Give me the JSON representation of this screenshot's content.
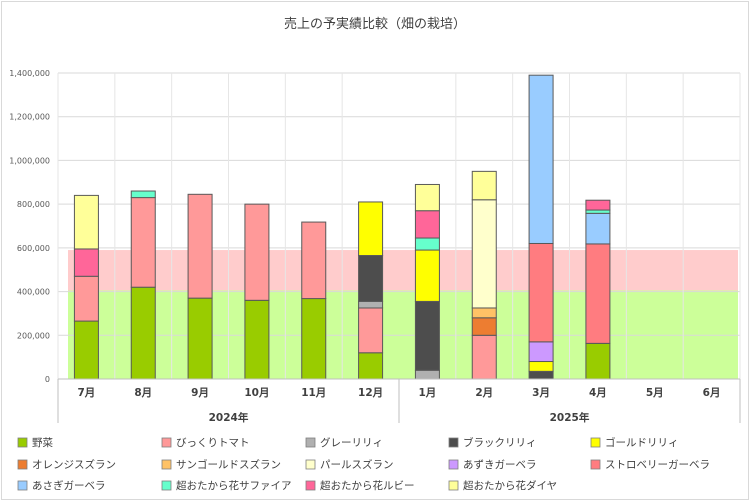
{
  "chart_data": {
    "type": "bar",
    "stacked": true,
    "title": "売上の予実績比較（畑の栽培）",
    "xlabel": "",
    "ylabel": "",
    "ylim": [
      0,
      1400000
    ],
    "yticks": [
      0,
      200000,
      400000,
      600000,
      800000,
      1000000,
      1200000,
      1400000
    ],
    "ytick_labels": [
      "0",
      "200,000",
      "400,000",
      "600,000",
      "800,000",
      "1,000,000",
      "1,200,000",
      "1,400,000"
    ],
    "categories": [
      "7月",
      "8月",
      "9月",
      "10月",
      "11月",
      "12月",
      "1月",
      "2月",
      "3月",
      "4月",
      "5月",
      "6月"
    ],
    "year_groups": [
      {
        "label": "2024年",
        "start": 0,
        "end": 5
      },
      {
        "label": "2025年",
        "start": 6,
        "end": 11
      }
    ],
    "grid": true,
    "legend_position": "bottom",
    "background_bands": [
      {
        "from": 0,
        "to": 405000,
        "color": "#ccff99"
      },
      {
        "from": 405000,
        "to": 590000,
        "color": "#ffcccc"
      }
    ],
    "series": [
      {
        "name": "野菜",
        "color": "#99cc00",
        "values": [
          265000,
          420000,
          370000,
          360000,
          368000,
          120000,
          0,
          0,
          0,
          163000,
          0,
          0
        ]
      },
      {
        "name": "びっくりトマト",
        "color": "#ff9999",
        "values": [
          205000,
          410000,
          475000,
          440000,
          350000,
          205000,
          0,
          200000,
          0,
          0,
          0,
          0
        ]
      },
      {
        "name": "グレーリリィ",
        "color": "#b0b0b0",
        "values": [
          0,
          0,
          0,
          0,
          0,
          30000,
          40000,
          0,
          0,
          0,
          0,
          0
        ]
      },
      {
        "name": "ブラックリリィ",
        "color": "#4d4d4d",
        "values": [
          0,
          0,
          0,
          0,
          0,
          210000,
          315000,
          0,
          35000,
          0,
          0,
          0
        ]
      },
      {
        "name": "ゴールドリリィ",
        "color": "#ffff00",
        "values": [
          0,
          0,
          0,
          0,
          0,
          245000,
          235000,
          0,
          45000,
          0,
          0,
          0
        ]
      },
      {
        "name": "オレンジスズラン",
        "color": "#ed7d31",
        "values": [
          0,
          0,
          0,
          0,
          0,
          0,
          0,
          80000,
          0,
          0,
          0,
          0
        ]
      },
      {
        "name": "サンゴールドスズラン",
        "color": "#ffc266",
        "values": [
          0,
          0,
          0,
          0,
          0,
          0,
          0,
          45000,
          0,
          0,
          0,
          0
        ]
      },
      {
        "name": "パールスズラン",
        "color": "#ffffcc",
        "values": [
          0,
          0,
          0,
          0,
          0,
          0,
          0,
          495000,
          0,
          0,
          0,
          0
        ]
      },
      {
        "name": "あずきガーベラ",
        "color": "#cc99ff",
        "values": [
          0,
          0,
          0,
          0,
          0,
          0,
          0,
          0,
          90000,
          0,
          0,
          0
        ]
      },
      {
        "name": "ストロベリーガーベラ",
        "color": "#ff7c80",
        "values": [
          0,
          0,
          0,
          0,
          0,
          0,
          0,
          0,
          450000,
          455000,
          0,
          0
        ]
      },
      {
        "name": "あさぎガーベラ",
        "color": "#99ccff",
        "values": [
          0,
          0,
          0,
          0,
          0,
          0,
          0,
          0,
          770000,
          140000,
          0,
          0
        ]
      },
      {
        "name": "超おたから花サファイア",
        "color": "#66ffcc",
        "values": [
          0,
          30000,
          0,
          0,
          0,
          0,
          55000,
          0,
          0,
          15000,
          0,
          0
        ]
      },
      {
        "name": "超おたから花ルビー",
        "color": "#ff6699",
        "values": [
          125000,
          0,
          0,
          0,
          0,
          0,
          125000,
          0,
          0,
          45000,
          0,
          0
        ]
      },
      {
        "name": "超おたから花ダイヤ",
        "color": "#ffff99",
        "values": [
          245000,
          0,
          0,
          0,
          0,
          0,
          120000,
          130000,
          0,
          0,
          0,
          0
        ]
      }
    ]
  }
}
